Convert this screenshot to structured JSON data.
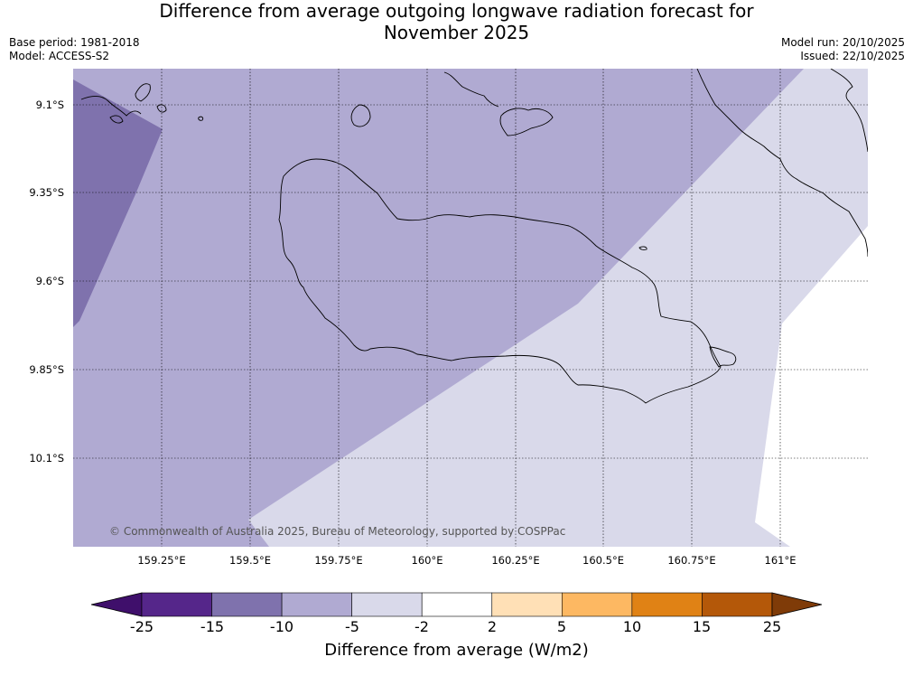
{
  "header": {
    "title_line1": "Difference from average outgoing longwave radiation forecast for",
    "title_line2": "November 2025",
    "base_period": "Base period: 1981-2018",
    "model": "Model: ACCESS-S2",
    "model_run": "Model run: 20/10/2025",
    "issued": "Issued: 22/10/2025"
  },
  "map": {
    "latitudes": [
      "9.1°S",
      "9.35°S",
      "9.6°S",
      "9.85°S",
      "10.1°S"
    ],
    "longitudes": [
      "159.25°E",
      "159.5°E",
      "159.75°E",
      "160°E",
      "160.25°E",
      "160.5°E",
      "160.75°E",
      "161°E"
    ],
    "copyright": "© Commonwealth of Australia 2025, Bureau of Meteorology, supported by COSPPac",
    "fill_colors": {
      "neg10_neg5": "#7f72ad",
      "neg5_neg2": "#b0aad2",
      "neg2_2_band": "#d9d9ea",
      "neutral": "#ffffff"
    }
  },
  "colorbar": {
    "title": "Difference from average (W/m2)",
    "ticks": [
      "-25",
      "-15",
      "-10",
      "-5",
      "-2",
      "2",
      "5",
      "10",
      "15",
      "25"
    ],
    "colors": [
      "#3f0f6b",
      "#55268a",
      "#7f72ad",
      "#b0aad2",
      "#d9d9ea",
      "#ffffff",
      "#ffe0b6",
      "#fdb862",
      "#e08215",
      "#b45809",
      "#7f3b08"
    ]
  }
}
